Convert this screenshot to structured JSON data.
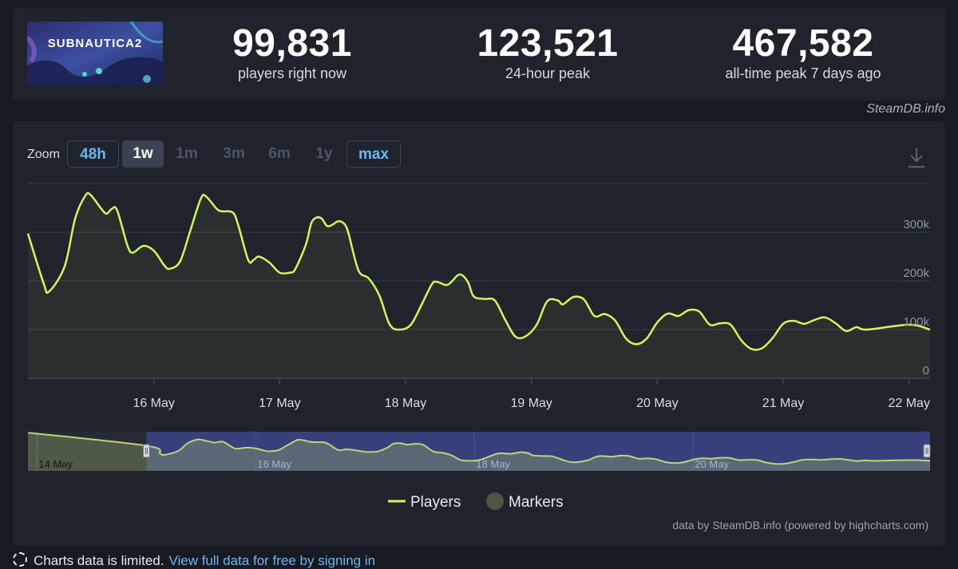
{
  "stats": {
    "players_now": {
      "value": "99,831",
      "label": "players right now"
    },
    "peak_24h": {
      "value": "123,521",
      "label": "24-hour peak"
    },
    "all_time_peak": {
      "value": "467,582",
      "label": "all-time peak 7 days ago"
    }
  },
  "game_logo_text": "SUBNAUTICA2",
  "credit": "SteamDB.info",
  "zoom": {
    "label": "Zoom",
    "options": [
      {
        "label": "48h",
        "state": "link"
      },
      {
        "label": "1w",
        "state": "active"
      },
      {
        "label": "1m",
        "state": "disabled"
      },
      {
        "label": "3m",
        "state": "disabled"
      },
      {
        "label": "6m",
        "state": "disabled"
      },
      {
        "label": "1y",
        "state": "disabled"
      },
      {
        "label": "max",
        "state": "link"
      }
    ]
  },
  "icons": {
    "download": "download-icon",
    "info": "dashed-circle-icon"
  },
  "chart_data": {
    "type": "line",
    "series": [
      {
        "name": "Players",
        "color": "#d4f55a"
      }
    ],
    "x_start": "15 May 00:00",
    "x_end": "22 May 04:00",
    "x_tick_labels": [
      "16 May",
      "17 May",
      "18 May",
      "19 May",
      "20 May",
      "21 May",
      "22 May"
    ],
    "y_tick_labels": [
      "0",
      "100k",
      "200k",
      "300k"
    ],
    "ylim": [
      0,
      400000
    ],
    "points": [
      [
        "15 May 00:00",
        297000
      ],
      [
        "15 May 03:00",
        195000
      ],
      [
        "15 May 04:00",
        178000
      ],
      [
        "15 May 07:00",
        230000
      ],
      [
        "15 May 09:00",
        328000
      ],
      [
        "15 May 11:00",
        376000
      ],
      [
        "15 May 12:00",
        376000
      ],
      [
        "15 May 14:00",
        348000
      ],
      [
        "15 May 15:00",
        338000
      ],
      [
        "15 May 16:00",
        348000
      ],
      [
        "15 May 17:00",
        345000
      ],
      [
        "15 May 19:00",
        272000
      ],
      [
        "15 May 20:00",
        258000
      ],
      [
        "15 May 22:00",
        272000
      ],
      [
        "16 May 00:00",
        262000
      ],
      [
        "16 May 02:00",
        232000
      ],
      [
        "16 May 03:00",
        225000
      ],
      [
        "16 May 05:00",
        240000
      ],
      [
        "16 May 07:00",
        305000
      ],
      [
        "16 May 09:00",
        370000
      ],
      [
        "16 May 10:00",
        373000
      ],
      [
        "16 May 12:00",
        348000
      ],
      [
        "16 May 13:00",
        343000
      ],
      [
        "16 May 15:00",
        341000
      ],
      [
        "16 May 16:00",
        318000
      ],
      [
        "16 May 18:00",
        243000
      ],
      [
        "16 May 19:00",
        243000
      ],
      [
        "16 May 20:00",
        250000
      ],
      [
        "16 May 22:00",
        238000
      ],
      [
        "17 May 00:00",
        217000
      ],
      [
        "17 May 02:00",
        217000
      ],
      [
        "17 May 03:00",
        225000
      ],
      [
        "17 May 05:00",
        275000
      ],
      [
        "17 May 06:00",
        318000
      ],
      [
        "17 May 07:00",
        330000
      ],
      [
        "17 May 08:00",
        328000
      ],
      [
        "17 May 09:00",
        313000
      ],
      [
        "17 May 10:00",
        315000
      ],
      [
        "17 May 11:00",
        322000
      ],
      [
        "17 May 12:00",
        320000
      ],
      [
        "17 May 13:00",
        302000
      ],
      [
        "17 May 15:00",
        222000
      ],
      [
        "17 May 17:00",
        205000
      ],
      [
        "17 May 19:00",
        170000
      ],
      [
        "17 May 21:00",
        110000
      ],
      [
        "17 May 23:00",
        100000
      ],
      [
        "18 May 01:00",
        110000
      ],
      [
        "18 May 03:00",
        150000
      ],
      [
        "18 May 05:00",
        193000
      ],
      [
        "18 May 06:00",
        198000
      ],
      [
        "18 May 08:00",
        192000
      ],
      [
        "18 May 10:00",
        212000
      ],
      [
        "18 May 11:00",
        210000
      ],
      [
        "18 May 12:00",
        195000
      ],
      [
        "18 May 13:00",
        168000
      ],
      [
        "18 May 15:00",
        163000
      ],
      [
        "18 May 17:00",
        160000
      ],
      [
        "18 May 19:00",
        120000
      ],
      [
        "18 May 21:00",
        85000
      ],
      [
        "18 May 23:00",
        87000
      ],
      [
        "19 May 01:00",
        110000
      ],
      [
        "19 May 03:00",
        158000
      ],
      [
        "19 May 05:00",
        160000
      ],
      [
        "19 May 06:00",
        152000
      ],
      [
        "19 May 08:00",
        167000
      ],
      [
        "19 May 10:00",
        162000
      ],
      [
        "19 May 12:00",
        128000
      ],
      [
        "19 May 14:00",
        132000
      ],
      [
        "19 May 16:00",
        118000
      ],
      [
        "19 May 18:00",
        82000
      ],
      [
        "19 May 20:00",
        70000
      ],
      [
        "19 May 22:00",
        82000
      ],
      [
        "20 May 00:00",
        115000
      ],
      [
        "20 May 02:00",
        133000
      ],
      [
        "20 May 04:00",
        128000
      ],
      [
        "20 May 06:00",
        140000
      ],
      [
        "20 May 08:00",
        137000
      ],
      [
        "20 May 10:00",
        110000
      ],
      [
        "20 May 12:00",
        113000
      ],
      [
        "20 May 14:00",
        110000
      ],
      [
        "20 May 16:00",
        78000
      ],
      [
        "20 May 18:00",
        60000
      ],
      [
        "20 May 20:00",
        62000
      ],
      [
        "20 May 22:00",
        83000
      ],
      [
        "21 May 00:00",
        112000
      ],
      [
        "21 May 02:00",
        118000
      ],
      [
        "21 May 04:00",
        112000
      ],
      [
        "21 May 06:00",
        120000
      ],
      [
        "21 May 08:00",
        125000
      ],
      [
        "21 May 10:00",
        113000
      ],
      [
        "21 May 12:00",
        97000
      ],
      [
        "21 May 14:00",
        105000
      ],
      [
        "21 May 16:00",
        100000
      ],
      [
        "22 May 00:00",
        110000
      ],
      [
        "22 May 04:00",
        100000
      ]
    ],
    "navigator": {
      "x_tick_labels": [
        "14 May",
        "16 May",
        "18 May",
        "20 May"
      ],
      "x_start": "13 May 22:00",
      "x_end": "22 May 04:00",
      "selected_from": "15 May 00:00",
      "selected_to": "22 May 04:00",
      "early_points": [
        [
          "13 May 22:00",
          467582
        ],
        [
          "15 May 00:00",
          297000
        ]
      ]
    },
    "legend": [
      {
        "label": "Players",
        "type": "line",
        "color": "#d4f55a"
      },
      {
        "label": "Markers",
        "type": "circle",
        "color": "#4b5540"
      }
    ],
    "credit": "data by SteamDB.info (powered by highcharts.com)"
  },
  "footer": {
    "text": "Charts data is limited.",
    "link": "View full data for free by signing in"
  }
}
